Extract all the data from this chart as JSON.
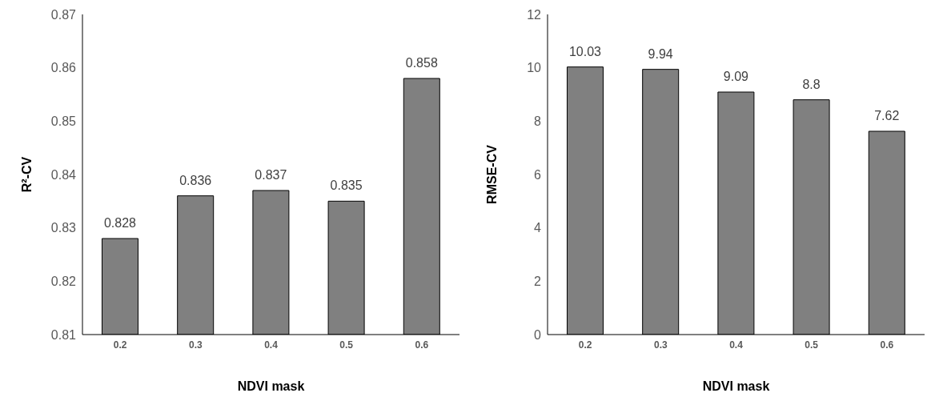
{
  "chart_data": [
    {
      "type": "bar",
      "xlabel": "NDVI mask",
      "ylabel": "R²-CV",
      "categories": [
        "0.2",
        "0.3",
        "0.4",
        "0.5",
        "0.6"
      ],
      "values": [
        0.828,
        0.836,
        0.837,
        0.835,
        0.858
      ],
      "color": "#808080",
      "ylim": [
        0.81,
        0.87
      ],
      "yticks": [
        0.81,
        0.82,
        0.83,
        0.84,
        0.85,
        0.86,
        0.87
      ],
      "data_labels": true,
      "grid": false,
      "legend": false
    },
    {
      "type": "bar",
      "xlabel": "NDVI mask",
      "ylabel": "RMSE-CV",
      "categories": [
        "0.2",
        "0.3",
        "0.4",
        "0.5",
        "0.6"
      ],
      "values": [
        10.03,
        9.94,
        9.09,
        8.8,
        7.62
      ],
      "color": "#808080",
      "ylim": [
        0,
        12
      ],
      "yticks": [
        0,
        2,
        4,
        6,
        8,
        10,
        12
      ],
      "data_labels": true,
      "grid": false,
      "legend": false
    }
  ]
}
